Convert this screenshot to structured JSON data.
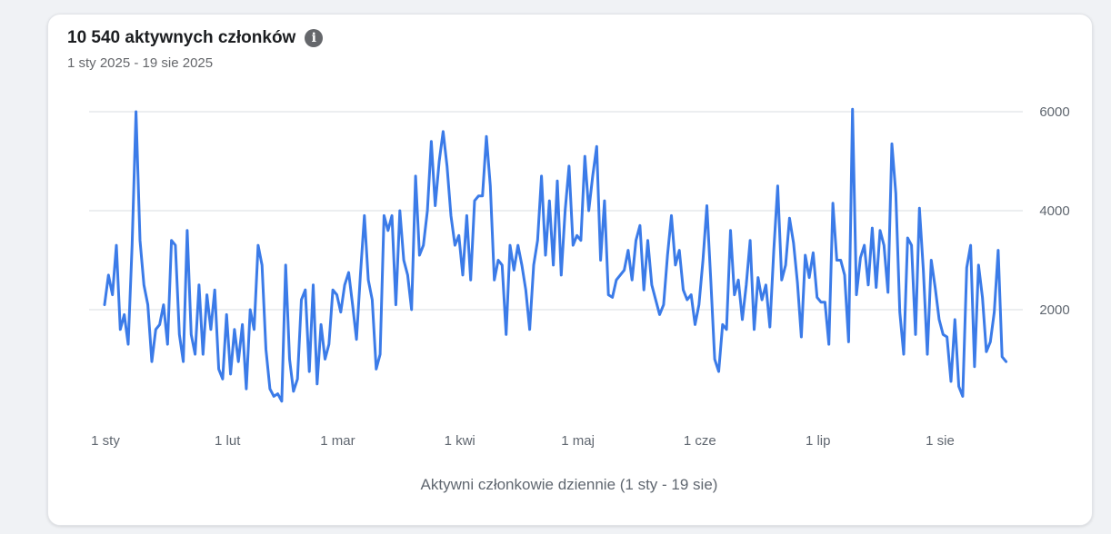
{
  "header": {
    "title": "10 540 aktywnych członków",
    "info_icon": "info-icon",
    "subtitle": "1 sty 2025 - 19 sie 2025"
  },
  "chart_data": {
    "type": "line",
    "title": "10 540 aktywnych członków",
    "xlabel": "Aktywni członkowie dziennie (1 sty - 19 sie)",
    "ylabel": "",
    "ylim": [
      0,
      6000
    ],
    "yticks": [
      2000,
      4000,
      6000
    ],
    "ytick_labels": [
      "2000",
      "4000",
      "6000"
    ],
    "xticks": [
      {
        "day": 0,
        "label": "1 sty"
      },
      {
        "day": 31,
        "label": "1 lut"
      },
      {
        "day": 59,
        "label": "1 mar"
      },
      {
        "day": 90,
        "label": "1 kwi"
      },
      {
        "day": 120,
        "label": "1 maj"
      },
      {
        "day": 151,
        "label": "1 cze"
      },
      {
        "day": 181,
        "label": "1 lip"
      },
      {
        "day": 212,
        "label": "1 sie"
      }
    ],
    "grid": true,
    "color": "#3b7be8",
    "series": [
      {
        "name": "Aktywni członkowie dziennie",
        "values": [
          2100,
          2700,
          2300,
          3300,
          1600,
          1900,
          1300,
          3300,
          6000,
          3400,
          2500,
          2100,
          950,
          1600,
          1700,
          2100,
          1300,
          3400,
          3300,
          1500,
          950,
          3600,
          1500,
          1100,
          2500,
          1100,
          2300,
          1600,
          2400,
          800,
          600,
          1900,
          700,
          1600,
          950,
          1700,
          400,
          2000,
          1600,
          3300,
          2900,
          1200,
          400,
          250,
          300,
          150,
          2900,
          1000,
          350,
          600,
          2200,
          2400,
          750,
          2500,
          500,
          1700,
          1000,
          1300,
          2400,
          2300,
          1950,
          2500,
          2750,
          2100,
          1400,
          2700,
          3900,
          2600,
          2200,
          800,
          1100,
          3900,
          3600,
          3900,
          2100,
          4000,
          3000,
          2700,
          2000,
          4700,
          3100,
          3300,
          4000,
          5400,
          4100,
          5000,
          5600,
          4900,
          3900,
          3300,
          3500,
          2700,
          3900,
          2600,
          4200,
          4300,
          4300,
          5500,
          4500,
          2600,
          3000,
          2900,
          1500,
          3300,
          2800,
          3300,
          2900,
          2400,
          1600,
          2900,
          3400,
          4700,
          3100,
          4200,
          2900,
          4600,
          2700,
          4000,
          4900,
          3300,
          3500,
          3400,
          5100,
          4000,
          4700,
          5300,
          3000,
          4200,
          2300,
          2250,
          2600,
          2700,
          2800,
          3200,
          2600,
          3400,
          3700,
          2400,
          3400,
          2500,
          2200,
          1900,
          2100,
          3100,
          3900,
          2900,
          3200,
          2400,
          2200,
          2300,
          1700,
          2100,
          3000,
          4100,
          2600,
          1000,
          750,
          1700,
          1600,
          3600,
          2300,
          2600,
          1800,
          2500,
          3400,
          1600,
          2650,
          2200,
          2500,
          1650,
          3200,
          4500,
          2600,
          2900,
          3850,
          3350,
          2550,
          1450,
          3100,
          2650,
          3150,
          2250,
          2150,
          2150,
          1300,
          4150,
          3000,
          3000,
          2700,
          1350,
          6050,
          2300,
          3050,
          3300,
          2500,
          3650,
          2450,
          3600,
          3300,
          2350,
          5350,
          4350,
          1950,
          1100,
          3450,
          3300,
          1500,
          4050,
          2800,
          1100,
          3000,
          2450,
          1800,
          1500,
          1450,
          550,
          1800,
          450,
          250,
          2850,
          3300,
          850,
          2900,
          2250,
          1150,
          1350,
          1950,
          3200,
          1050,
          950
        ]
      }
    ]
  }
}
